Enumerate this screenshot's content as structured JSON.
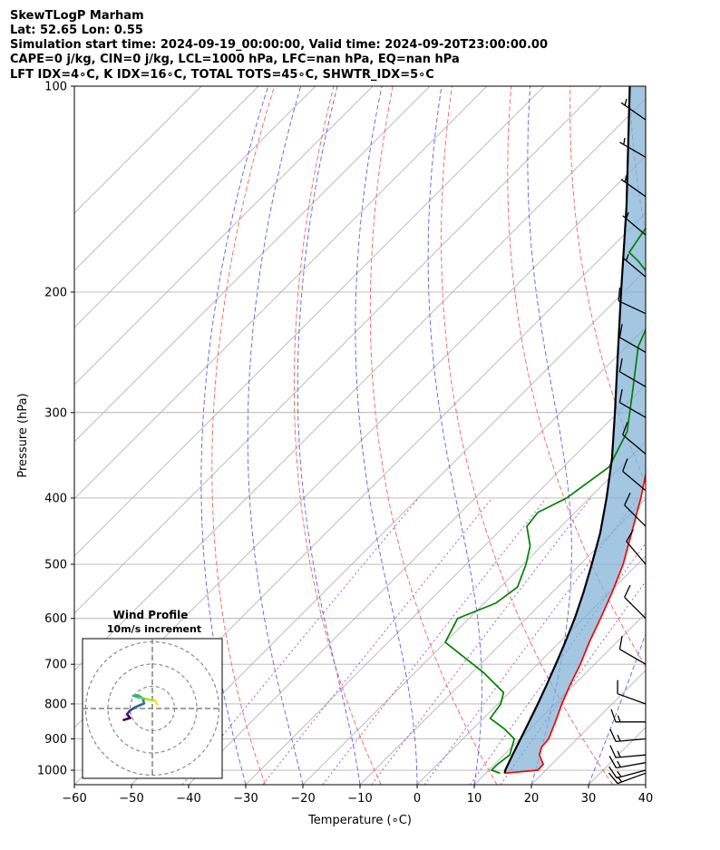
{
  "header": {
    "line1": "SkewTLogP Marham",
    "line2": "Lat: 52.65   Lon: 0.55",
    "line3": "Simulation start time: 2024-09-19_00:00:00, Valid time: 2024-09-20T23:00:00.00",
    "line4": "CAPE=0 j/kg, CIN=0 j/kg, LCL=1000 hPa, LFC=nan hPa, EQ=nan hPa",
    "line5": "LFT IDX=4∘C, K IDX=16∘C, TOTAL TOTS=45∘C, SHWTR_IDX=5∘C"
  },
  "chart_data": {
    "type": "line",
    "skew": "skewT-logP",
    "xlabel": "Temperature (∘C)",
    "ylabel": "Pressure (hPa)",
    "xlim": [
      -60,
      40
    ],
    "ylim": [
      1050,
      100
    ],
    "y_scale": "log",
    "grid": true,
    "x_ticks": [
      -60,
      -50,
      -40,
      -30,
      -20,
      -10,
      0,
      10,
      20,
      30,
      40
    ],
    "y_ticks": [
      100,
      200,
      300,
      400,
      500,
      600,
      700,
      800,
      900,
      1000
    ],
    "series": [
      {
        "role": "temperature",
        "color": "#ff0000",
        "points": [
          [
            1010,
            13.3
          ],
          [
            1000,
            18.6
          ],
          [
            980,
            18.5
          ],
          [
            950,
            16.2
          ],
          [
            925,
            15.2
          ],
          [
            900,
            15.0
          ],
          [
            850,
            13.2
          ],
          [
            800,
            11.2
          ],
          [
            750,
            9.3
          ],
          [
            700,
            7.5
          ],
          [
            650,
            5.2
          ],
          [
            600,
            3.0
          ],
          [
            550,
            0.5
          ],
          [
            500,
            -2.5
          ],
          [
            450,
            -6.5
          ],
          [
            400,
            -11.0
          ],
          [
            350,
            -16.5
          ],
          [
            300,
            -23.0
          ],
          [
            270,
            -26.0
          ],
          [
            250,
            -28.5
          ],
          [
            230,
            -33.0
          ],
          [
            210,
            -38.5
          ],
          [
            200,
            -40.5
          ],
          [
            180,
            -45.5
          ],
          [
            170,
            -48.5
          ],
          [
            160,
            -52.5
          ],
          [
            150,
            -56.5
          ],
          [
            140,
            -58.5
          ],
          [
            130,
            -60.5
          ],
          [
            120,
            -62.5
          ],
          [
            110,
            -64.5
          ],
          [
            100,
            -66.5
          ]
        ]
      },
      {
        "role": "dewpoint",
        "color": "#008000",
        "points": [
          [
            1010,
            12.5
          ],
          [
            1000,
            10.5
          ],
          [
            980,
            10.5
          ],
          [
            950,
            11.0
          ],
          [
            900,
            9.0
          ],
          [
            870,
            5.5
          ],
          [
            840,
            1.2
          ],
          [
            800,
            0.5
          ],
          [
            770,
            -1.0
          ],
          [
            720,
            -8.0
          ],
          [
            650,
            -20.0
          ],
          [
            600,
            -22.0
          ],
          [
            570,
            -18.0
          ],
          [
            540,
            -17.0
          ],
          [
            500,
            -19.5
          ],
          [
            470,
            -22.0
          ],
          [
            440,
            -26.0
          ],
          [
            420,
            -26.5
          ],
          [
            400,
            -24.0
          ],
          [
            360,
            -22.0
          ],
          [
            320,
            -25.0
          ],
          [
            280,
            -31.0
          ],
          [
            240,
            -38.0
          ],
          [
            220,
            -40.5
          ],
          [
            200,
            -43.0
          ],
          [
            190,
            -48.0
          ],
          [
            180,
            -53.0
          ],
          [
            175,
            -56.0
          ],
          [
            165,
            -57.0
          ],
          [
            155,
            -58.0
          ],
          [
            150,
            -60.0
          ],
          [
            140,
            -64.0
          ],
          [
            130,
            -68.0
          ],
          [
            120,
            -72.0
          ],
          [
            110,
            -77.0
          ],
          [
            100,
            -82.0
          ]
        ]
      },
      {
        "role": "parcel-profile",
        "color": "#000000",
        "points": [
          [
            1010,
            13.3
          ],
          [
            1000,
            12.9
          ],
          [
            950,
            11.5
          ],
          [
            900,
            10.1
          ],
          [
            850,
            8.6
          ],
          [
            800,
            7.0
          ],
          [
            750,
            5.2
          ],
          [
            700,
            3.2
          ],
          [
            650,
            1.0
          ],
          [
            600,
            -1.5
          ],
          [
            550,
            -4.5
          ],
          [
            500,
            -8.0
          ],
          [
            450,
            -12.0
          ],
          [
            400,
            -17.0
          ],
          [
            350,
            -23.0
          ],
          [
            300,
            -30.5
          ],
          [
            250,
            -39.5
          ],
          [
            200,
            -50.5
          ],
          [
            150,
            -64.5
          ],
          [
            100,
            -85.0
          ]
        ]
      }
    ],
    "shaded_region": {
      "between": [
        "temperature",
        "parcel-profile"
      ],
      "color": "#7fb2d6"
    },
    "wind_barbs": [
      {
        "p": 1010,
        "dir": 250,
        "kt": 15
      },
      {
        "p": 1000,
        "dir": 255,
        "kt": 15
      },
      {
        "p": 975,
        "dir": 260,
        "kt": 15
      },
      {
        "p": 950,
        "dir": 265,
        "kt": 15
      },
      {
        "p": 900,
        "dir": 265,
        "kt": 15
      },
      {
        "p": 850,
        "dir": 270,
        "kt": 15
      },
      {
        "p": 800,
        "dir": 290,
        "kt": 10
      },
      {
        "p": 700,
        "dir": 300,
        "kt": 10
      },
      {
        "p": 600,
        "dir": 315,
        "kt": 10
      },
      {
        "p": 500,
        "dir": 320,
        "kt": 10
      },
      {
        "p": 440,
        "dir": 315,
        "kt": 10
      },
      {
        "p": 390,
        "dir": 310,
        "kt": 10
      },
      {
        "p": 345,
        "dir": 310,
        "kt": 10
      },
      {
        "p": 305,
        "dir": 300,
        "kt": 10
      },
      {
        "p": 275,
        "dir": 300,
        "kt": 10
      },
      {
        "p": 245,
        "dir": 300,
        "kt": 10
      },
      {
        "p": 215,
        "dir": 295,
        "kt": 10
      },
      {
        "p": 190,
        "dir": 310,
        "kt": 5
      },
      {
        "p": 165,
        "dir": 310,
        "kt": 5
      },
      {
        "p": 145,
        "dir": 305,
        "kt": 5
      },
      {
        "p": 127,
        "dir": 300,
        "kt": 5
      },
      {
        "p": 112,
        "dir": 305,
        "kt": 5
      }
    ]
  },
  "inset": {
    "title": "Wind Profile",
    "subtitle": "10m/s increment",
    "hodograph": [
      [
        -4.5,
        -1.8
      ],
      [
        -3.5,
        -1.5
      ],
      [
        -4.0,
        -0.9
      ],
      [
        -3.5,
        -0.3
      ],
      [
        -2.7,
        0.2
      ],
      [
        -2.0,
        0.5
      ],
      [
        -1.3,
        0.8
      ],
      [
        -1.5,
        1.6
      ],
      [
        -2.3,
        2.1
      ],
      [
        -3.0,
        2.0
      ],
      [
        -2.0,
        1.7
      ],
      [
        -1.0,
        1.5
      ],
      [
        0.5,
        1.2
      ],
      [
        0.8,
        0.6
      ]
    ]
  }
}
